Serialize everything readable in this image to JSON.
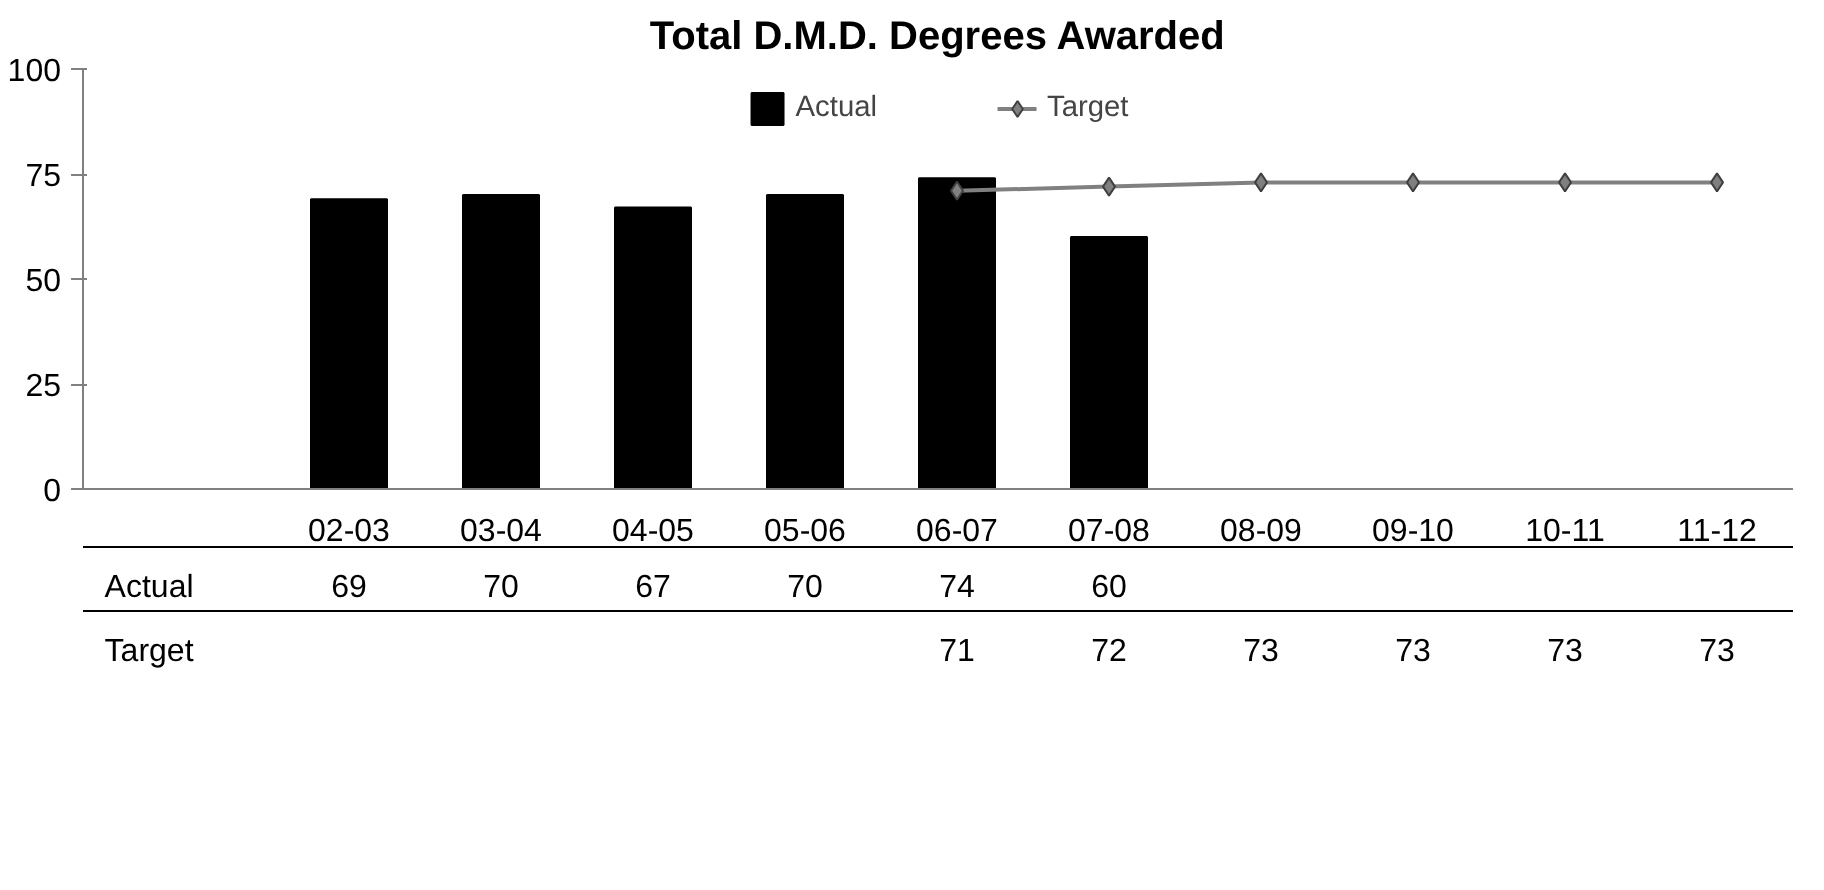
{
  "chart_data": {
    "type": "bar",
    "title": "Total D.M.D. Degrees Awarded",
    "categories": [
      "02-03",
      "03-04",
      "04-05",
      "05-06",
      "06-07",
      "07-08",
      "08-09",
      "09-10",
      "10-11",
      "11-12"
    ],
    "series": [
      {
        "name": "Actual",
        "color": "#000000",
        "values": [
          69,
          70,
          67,
          70,
          74,
          60,
          null,
          null,
          null,
          null
        ]
      },
      {
        "name": "Target",
        "type": "line",
        "color": "#808080",
        "marker": "diamond",
        "values": [
          null,
          null,
          null,
          null,
          71,
          72,
          73,
          73,
          73,
          73
        ]
      }
    ],
    "ylim": [
      0,
      100
    ],
    "yticks": [
      0,
      25,
      50,
      75,
      100
    ],
    "grid": false,
    "legend": "top",
    "data_labels": true
  }
}
